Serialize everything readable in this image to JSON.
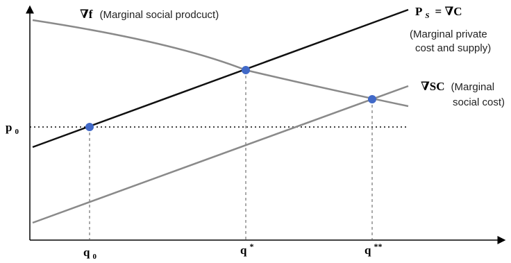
{
  "diagram": {
    "labels": {
      "mps_symbol": "∇f",
      "mps_text": "(Marginal social prodcuct)",
      "supply_symbol_p": "P",
      "supply_symbol_s": "S",
      "supply_symbol_eq": "= ∇C",
      "supply_text_line1": "(Marginal private",
      "supply_text_line2": "cost and supply)",
      "msc_symbol": "∇SC",
      "msc_text_line1": "(Marginal",
      "msc_text_line2": "social cost)",
      "p0_base": "p",
      "p0_sub": "0",
      "q0_base": "q",
      "q0_sub": "0",
      "qstar_base": "q",
      "qstar_sup": "*",
      "qstarstar_base": "q",
      "qstarstar_sup": "**"
    },
    "colors": {
      "axis": "#000000",
      "supply_curve": "#111111",
      "demand_curve": "#8a8a8a",
      "msc_curve": "#8a8a8a",
      "points": "#4169c8",
      "guide": "#555555"
    },
    "points": [
      "(q0, p0)",
      "(q*, intersection)",
      "(q**, intersection)"
    ]
  }
}
